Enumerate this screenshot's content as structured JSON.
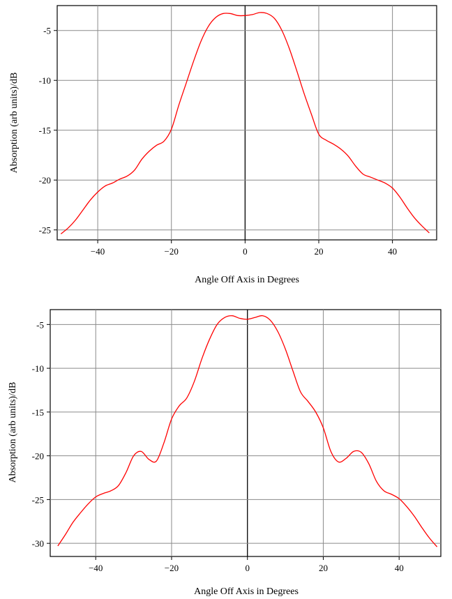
{
  "chart_data": [
    {
      "type": "line",
      "xlabel": "Angle Off Axis in Degrees",
      "ylabel": "Absorption (arb units)/dB",
      "xlim": [
        -51,
        52
      ],
      "ylim": [
        -26,
        -2.5
      ],
      "xticks": [
        -40,
        -20,
        0,
        20,
        40
      ],
      "yticks": [
        -5,
        -10,
        -15,
        -20,
        -25
      ],
      "xtick_labels": [
        "−40",
        "−20",
        "0",
        "20",
        "40"
      ],
      "ytick_labels": [
        "-5",
        "-10",
        "-15",
        "-20",
        "-25"
      ],
      "grid": true,
      "line_color": "#ff0000",
      "series": [
        {
          "x": [
            -50,
            -48,
            -46,
            -44,
            -42,
            -40,
            -38,
            -36,
            -34,
            -32,
            -30,
            -28,
            -26,
            -24,
            -22,
            -20,
            -18,
            -16,
            -14,
            -12,
            -10,
            -8,
            -6,
            -4,
            -2,
            0,
            2,
            4,
            6,
            8,
            10,
            12,
            14,
            16,
            18,
            20,
            22,
            24,
            26,
            28,
            30,
            32,
            34,
            36,
            38,
            40,
            42,
            44,
            46,
            48,
            50
          ],
          "y": [
            -25.4,
            -24.8,
            -24.0,
            -23.0,
            -22.0,
            -21.2,
            -20.6,
            -20.3,
            -19.9,
            -19.6,
            -19.0,
            -17.9,
            -17.1,
            -16.5,
            -16.1,
            -14.9,
            -12.5,
            -10.3,
            -8.1,
            -6.1,
            -4.6,
            -3.7,
            -3.3,
            -3.3,
            -3.5,
            -3.5,
            -3.4,
            -3.2,
            -3.3,
            -3.8,
            -5.0,
            -6.8,
            -9.0,
            -11.3,
            -13.4,
            -15.4,
            -16.0,
            -16.4,
            -16.9,
            -17.6,
            -18.6,
            -19.4,
            -19.7,
            -20.0,
            -20.3,
            -20.8,
            -21.7,
            -22.8,
            -23.8,
            -24.6,
            -25.3
          ]
        }
      ]
    },
    {
      "type": "line",
      "xlabel": "Angle Off Axis in Degrees",
      "ylabel": "Absorption (arb units)/dB",
      "xlim": [
        -52,
        51
      ],
      "ylim": [
        -31.5,
        -3.3
      ],
      "xticks": [
        -40,
        -20,
        0,
        20,
        40
      ],
      "yticks": [
        -5,
        -10,
        -15,
        -20,
        -25,
        -30
      ],
      "xtick_labels": [
        "−40",
        "−20",
        "0",
        "20",
        "40"
      ],
      "ytick_labels": [
        "-5",
        "-10",
        "-15",
        "-20",
        "-25",
        "-30"
      ],
      "grid": true,
      "line_color": "#ff0000",
      "series": [
        {
          "x": [
            -50,
            -48,
            -46,
            -44,
            -42,
            -40,
            -38,
            -36,
            -34,
            -32,
            -30,
            -28,
            -26,
            -24,
            -22,
            -20,
            -18,
            -16,
            -14,
            -12,
            -10,
            -8,
            -6,
            -4,
            -2,
            0,
            2,
            4,
            6,
            8,
            10,
            12,
            14,
            16,
            18,
            20,
            22,
            24,
            26,
            28,
            30,
            32,
            34,
            36,
            38,
            40,
            42,
            44,
            46,
            48,
            50
          ],
          "y": [
            -30.3,
            -29.0,
            -27.6,
            -26.5,
            -25.5,
            -24.7,
            -24.3,
            -24.0,
            -23.4,
            -21.9,
            -20.0,
            -19.5,
            -20.4,
            -20.6,
            -18.5,
            -15.8,
            -14.3,
            -13.4,
            -11.5,
            -8.9,
            -6.7,
            -5.0,
            -4.2,
            -4.0,
            -4.3,
            -4.4,
            -4.2,
            -4.0,
            -4.5,
            -5.8,
            -7.8,
            -10.3,
            -12.7,
            -13.8,
            -15.0,
            -16.8,
            -19.5,
            -20.7,
            -20.3,
            -19.5,
            -19.6,
            -20.9,
            -22.9,
            -24.0,
            -24.4,
            -24.9,
            -25.8,
            -26.9,
            -28.2,
            -29.4,
            -30.4
          ]
        }
      ]
    }
  ]
}
